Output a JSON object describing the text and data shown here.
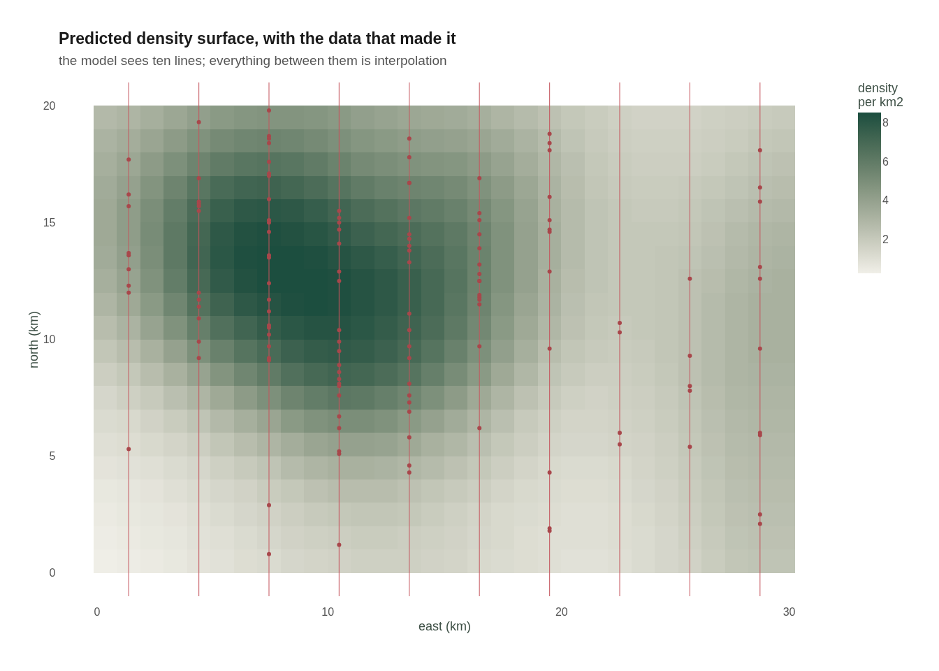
{
  "chart_data": {
    "type": "heatmap",
    "title": "Predicted density surface, with the data that made it",
    "subtitle": "the model sees ten lines; everything between them is interpolation",
    "xlabel": "east (km)",
    "ylabel": "north (km)",
    "clabel": "density\nper km2",
    "xlim": [
      0,
      30
    ],
    "ylim": [
      -1,
      21
    ],
    "xticks": [
      0,
      10,
      20,
      30
    ],
    "yticks": [
      0,
      5,
      10,
      15,
      20
    ],
    "grid": false,
    "clim": [
      0.27,
      8.54
    ],
    "cticks": [
      2,
      4,
      6,
      8
    ],
    "colors": [
      "#f0efe8",
      "#1b4d3e"
    ],
    "x": [
      0.5,
      1.5,
      2.5,
      3.5,
      4.5,
      5.5,
      6.5,
      7.5,
      8.5,
      9.5,
      10.5,
      11.5,
      12.5,
      13.5,
      14.5,
      15.5,
      16.5,
      17.5,
      18.5,
      19.5,
      20.5,
      21.5,
      22.5,
      23.5,
      24.5,
      25.5,
      26.5,
      27.5,
      28.5,
      29.5
    ],
    "y": [
      19.5,
      18.5,
      17.5,
      16.5,
      15.5,
      14.5,
      13.5,
      12.5,
      11.5,
      10.5,
      9.5,
      8.5,
      7.5,
      6.5,
      5.5,
      4.5,
      3.5,
      2.5,
      1.5,
      0.5
    ],
    "cells": [
      [
        2.8,
        3.0,
        3.3,
        3.7,
        4.1,
        4.4,
        4.6,
        4.7,
        4.7,
        4.6,
        4.4,
        4.1,
        3.9,
        3.7,
        3.6,
        3.5,
        3.3,
        3.0,
        2.7,
        2.4,
        2.1,
        1.9,
        1.7,
        1.6,
        1.6,
        1.6,
        1.7,
        1.8,
        1.9,
        2.0
      ],
      [
        3.1,
        3.4,
        3.8,
        4.3,
        4.8,
        5.2,
        5.4,
        5.5,
        5.4,
        5.2,
        4.9,
        4.6,
        4.4,
        4.2,
        4.1,
        4.0,
        3.8,
        3.5,
        3.1,
        2.7,
        2.3,
        2.0,
        1.8,
        1.7,
        1.7,
        1.7,
        1.8,
        1.9,
        2.1,
        2.2
      ],
      [
        3.3,
        3.7,
        4.3,
        4.9,
        5.5,
        6.0,
        6.3,
        6.4,
        6.3,
        6.0,
        5.6,
        5.2,
        5.0,
        4.8,
        4.7,
        4.6,
        4.3,
        3.9,
        3.4,
        2.9,
        2.5,
        2.1,
        1.9,
        1.8,
        1.8,
        1.8,
        1.9,
        2.1,
        2.3,
        2.4
      ],
      [
        3.5,
        4.0,
        4.7,
        5.5,
        6.3,
        6.9,
        7.2,
        7.3,
        7.1,
        6.8,
        6.4,
        6.0,
        5.7,
        5.5,
        5.4,
        5.2,
        4.8,
        4.3,
        3.7,
        3.1,
        2.6,
        2.2,
        2.0,
        1.9,
        1.9,
        2.0,
        2.1,
        2.3,
        2.5,
        2.6
      ],
      [
        3.6,
        4.2,
        5.0,
        5.9,
        6.8,
        7.5,
        7.9,
        8.0,
        7.9,
        7.6,
        7.2,
        6.8,
        6.5,
        6.2,
        6.0,
        5.7,
        5.2,
        4.6,
        3.9,
        3.2,
        2.7,
        2.3,
        2.1,
        2.0,
        2.0,
        2.1,
        2.3,
        2.5,
        2.7,
        2.8
      ],
      [
        3.6,
        4.2,
        5.1,
        6.1,
        7.1,
        7.9,
        8.3,
        8.4,
        8.3,
        8.1,
        7.8,
        7.4,
        7.1,
        6.8,
        6.5,
        6.1,
        5.5,
        4.8,
        4.0,
        3.3,
        2.7,
        2.3,
        2.1,
        2.1,
        2.1,
        2.2,
        2.4,
        2.7,
        2.9,
        3.0
      ],
      [
        3.5,
        4.1,
        5.0,
        6.1,
        7.2,
        8.0,
        8.4,
        8.5,
        8.5,
        8.4,
        8.2,
        7.9,
        7.6,
        7.2,
        6.8,
        6.3,
        5.6,
        4.8,
        4.0,
        3.3,
        2.7,
        2.3,
        2.1,
        2.1,
        2.2,
        2.3,
        2.5,
        2.8,
        3.0,
        3.1
      ],
      [
        3.3,
        3.9,
        4.8,
        5.9,
        7.0,
        7.8,
        8.3,
        8.5,
        8.5,
        8.5,
        8.4,
        8.2,
        7.9,
        7.5,
        7.0,
        6.4,
        5.6,
        4.8,
        4.0,
        3.2,
        2.6,
        2.3,
        2.1,
        2.1,
        2.2,
        2.4,
        2.6,
        2.9,
        3.1,
        3.2
      ],
      [
        3.0,
        3.6,
        4.4,
        5.4,
        6.5,
        7.3,
        7.9,
        8.2,
        8.4,
        8.5,
        8.4,
        8.2,
        7.9,
        7.5,
        7.0,
        6.3,
        5.5,
        4.6,
        3.8,
        3.1,
        2.5,
        2.2,
        2.1,
        2.1,
        2.2,
        2.4,
        2.7,
        3.0,
        3.2,
        3.2
      ],
      [
        2.6,
        3.1,
        3.9,
        4.8,
        5.8,
        6.6,
        7.2,
        7.7,
        8.0,
        8.2,
        8.2,
        8.0,
        7.7,
        7.3,
        6.8,
        6.1,
        5.3,
        4.4,
        3.6,
        2.9,
        2.4,
        2.1,
        2.0,
        2.1,
        2.2,
        2.4,
        2.7,
        3.0,
        3.2,
        3.2
      ],
      [
        2.2,
        2.6,
        3.2,
        4.0,
        4.9,
        5.7,
        6.4,
        6.9,
        7.4,
        7.7,
        7.8,
        7.7,
        7.4,
        7.0,
        6.4,
        5.7,
        4.9,
        4.1,
        3.3,
        2.6,
        2.2,
        2.0,
        1.9,
        2.0,
        2.2,
        2.4,
        2.7,
        3.0,
        3.2,
        3.2
      ],
      [
        1.8,
        2.1,
        2.6,
        3.2,
        3.9,
        4.7,
        5.4,
        6.0,
        6.6,
        7.0,
        7.2,
        7.1,
        6.8,
        6.4,
        5.8,
        5.1,
        4.4,
        3.6,
        2.9,
        2.3,
        2.0,
        1.8,
        1.8,
        1.9,
        2.1,
        2.4,
        2.7,
        3.0,
        3.1,
        3.1
      ],
      [
        1.4,
        1.7,
        2.0,
        2.5,
        3.0,
        3.6,
        4.3,
        4.9,
        5.5,
        5.9,
        6.2,
        6.1,
        5.8,
        5.4,
        4.9,
        4.3,
        3.6,
        3.0,
        2.4,
        2.0,
        1.7,
        1.6,
        1.7,
        1.8,
        2.0,
        2.3,
        2.6,
        2.9,
        3.0,
        3.0
      ],
      [
        1.2,
        1.3,
        1.6,
        1.9,
        2.3,
        2.8,
        3.3,
        3.8,
        4.4,
        4.8,
        5.0,
        5.0,
        4.8,
        4.4,
        4.0,
        3.5,
        3.0,
        2.5,
        2.0,
        1.7,
        1.5,
        1.5,
        1.6,
        1.7,
        1.9,
        2.2,
        2.5,
        2.8,
        2.9,
        2.9
      ],
      [
        1.0,
        1.1,
        1.3,
        1.5,
        1.8,
        2.2,
        2.6,
        3.0,
        3.4,
        3.8,
        4.0,
        4.0,
        3.9,
        3.6,
        3.2,
        2.9,
        2.5,
        2.1,
        1.8,
        1.5,
        1.4,
        1.4,
        1.5,
        1.6,
        1.8,
        2.1,
        2.4,
        2.7,
        2.8,
        2.8
      ],
      [
        0.8,
        0.9,
        1.0,
        1.2,
        1.4,
        1.7,
        2.0,
        2.3,
        2.7,
        3.0,
        3.2,
        3.2,
        3.1,
        2.9,
        2.7,
        2.4,
        2.1,
        1.8,
        1.5,
        1.3,
        1.2,
        1.2,
        1.3,
        1.5,
        1.7,
        2.0,
        2.3,
        2.6,
        2.7,
        2.7
      ],
      [
        0.6,
        0.7,
        0.8,
        1.0,
        1.2,
        1.4,
        1.6,
        1.9,
        2.1,
        2.4,
        2.6,
        2.6,
        2.6,
        2.4,
        2.2,
        2.0,
        1.8,
        1.5,
        1.3,
        1.2,
        1.1,
        1.1,
        1.2,
        1.4,
        1.6,
        1.9,
        2.2,
        2.5,
        2.6,
        2.6
      ],
      [
        0.5,
        0.6,
        0.7,
        0.8,
        1.0,
        1.2,
        1.4,
        1.6,
        1.8,
        2.0,
        2.1,
        2.2,
        2.2,
        2.1,
        1.9,
        1.7,
        1.5,
        1.3,
        1.2,
        1.1,
        1.0,
        1.0,
        1.1,
        1.3,
        1.5,
        1.8,
        2.1,
        2.4,
        2.5,
        2.5
      ],
      [
        0.4,
        0.5,
        0.6,
        0.7,
        0.9,
        1.0,
        1.2,
        1.4,
        1.6,
        1.7,
        1.8,
        1.9,
        1.9,
        1.8,
        1.7,
        1.6,
        1.4,
        1.3,
        1.1,
        1.0,
        1.0,
        1.0,
        1.1,
        1.2,
        1.4,
        1.7,
        2.0,
        2.3,
        2.4,
        2.4
      ],
      [
        0.3,
        0.4,
        0.5,
        0.6,
        0.8,
        0.9,
        1.1,
        1.2,
        1.4,
        1.5,
        1.6,
        1.7,
        1.7,
        1.7,
        1.6,
        1.5,
        1.3,
        1.2,
        1.1,
        1.0,
        0.9,
        0.9,
        1.0,
        1.2,
        1.4,
        1.6,
        1.9,
        2.2,
        2.3,
        2.3
      ]
    ],
    "series": [
      {
        "type": "scatter",
        "color": "#a8474b",
        "x": [
          1.5,
          1.5,
          1.5,
          1.5,
          1.5,
          1.5,
          1.5,
          1.5,
          1.5,
          4.5,
          4.5,
          4.5,
          4.5,
          4.5,
          4.5,
          4.5,
          4.5,
          4.5,
          4.5,
          4.5,
          4.5,
          7.5,
          7.5,
          7.5,
          7.5,
          7.5,
          7.5,
          7.5,
          7.5,
          7.5,
          7.5,
          7.5,
          7.5,
          7.5,
          7.5,
          7.5,
          7.5,
          7.5,
          7.5,
          7.5,
          7.5,
          7.5,
          7.5,
          7.5,
          7.5,
          10.5,
          10.5,
          10.5,
          10.5,
          10.5,
          10.5,
          10.5,
          10.5,
          10.5,
          10.5,
          10.5,
          10.5,
          10.5,
          10.5,
          10.5,
          10.5,
          10.5,
          10.5,
          10.5,
          10.5,
          10.5,
          13.5,
          13.5,
          13.5,
          13.5,
          13.5,
          13.5,
          13.5,
          13.5,
          13.5,
          13.5,
          13.5,
          13.5,
          13.5,
          13.5,
          13.5,
          13.5,
          13.5,
          13.5,
          13.5,
          13.5,
          13.5,
          16.5,
          16.5,
          16.5,
          16.5,
          16.5,
          16.5,
          16.5,
          16.5,
          16.5,
          16.5,
          16.5,
          16.5,
          16.5,
          16.5,
          16.5,
          19.5,
          19.5,
          19.5,
          19.5,
          19.5,
          19.5,
          19.5,
          19.5,
          19.5,
          19.5,
          19.5,
          19.5,
          22.5,
          22.5,
          22.5,
          22.5,
          25.5,
          25.5,
          25.5,
          25.5,
          25.5,
          28.5,
          28.5,
          28.5,
          28.5,
          28.5,
          28.5,
          28.5,
          28.5,
          28.5,
          28.5
        ],
        "values": [
          17.7,
          16.2,
          15.7,
          13.7,
          13.6,
          13.0,
          12.3,
          12.0,
          5.3,
          19.3,
          16.9,
          15.9,
          15.8,
          15.7,
          15.5,
          12.0,
          11.7,
          11.4,
          10.9,
          9.9,
          9.2,
          19.8,
          18.7,
          18.6,
          18.4,
          17.6,
          17.1,
          17.0,
          16.0,
          15.1,
          15.0,
          14.6,
          13.6,
          13.5,
          12.4,
          11.7,
          11.2,
          10.6,
          10.5,
          10.2,
          9.7,
          9.2,
          9.1,
          2.9,
          0.8,
          15.5,
          15.2,
          15.0,
          14.7,
          14.1,
          12.9,
          12.5,
          10.4,
          9.9,
          9.5,
          8.9,
          8.6,
          8.3,
          8.1,
          8.0,
          7.6,
          6.7,
          6.2,
          5.2,
          5.1,
          1.2,
          18.6,
          17.8,
          16.7,
          16.7,
          15.2,
          14.5,
          14.3,
          14.0,
          13.8,
          13.3,
          11.1,
          10.4,
          9.7,
          9.2,
          8.1,
          7.6,
          7.3,
          6.9,
          5.8,
          4.6,
          4.3,
          16.9,
          15.4,
          15.1,
          14.5,
          13.9,
          13.2,
          12.8,
          12.5,
          12.5,
          11.9,
          11.8,
          11.7,
          11.5,
          9.7,
          6.2,
          18.8,
          18.4,
          18.1,
          16.1,
          15.1,
          14.7,
          14.6,
          12.9,
          9.6,
          4.3,
          1.9,
          1.8,
          10.7,
          10.3,
          6.0,
          5.5,
          12.6,
          9.3,
          8.0,
          7.8,
          5.4,
          18.1,
          16.5,
          15.9,
          13.1,
          12.6,
          9.6,
          6.0,
          5.9,
          2.5,
          2.1
        ]
      }
    ],
    "ref_lines": [
      {
        "axis": "x",
        "value": 1.5,
        "color": "#c4555d"
      },
      {
        "axis": "x",
        "value": 4.5,
        "color": "#c4555d"
      },
      {
        "axis": "x",
        "value": 7.5,
        "color": "#c4555d"
      },
      {
        "axis": "x",
        "value": 10.5,
        "color": "#c4555d"
      },
      {
        "axis": "x",
        "value": 13.5,
        "color": "#c4555d"
      },
      {
        "axis": "x",
        "value": 16.5,
        "color": "#c4555d"
      },
      {
        "axis": "x",
        "value": 19.5,
        "color": "#c4555d"
      },
      {
        "axis": "x",
        "value": 22.5,
        "color": "#c4555d"
      },
      {
        "axis": "x",
        "value": 25.5,
        "color": "#c4555d"
      },
      {
        "axis": "x",
        "value": 28.5,
        "color": "#c4555d"
      }
    ]
  }
}
